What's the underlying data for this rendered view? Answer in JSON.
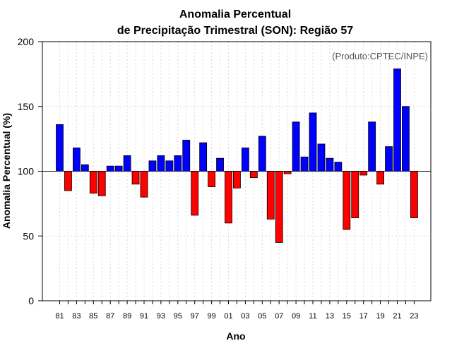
{
  "chart_data": {
    "type": "bar",
    "title_line1": "Anomalia Percentual",
    "title_line2": "de Precipitação Trimestral (SON): Região 57",
    "xlabel": "Ano",
    "ylabel": "Anomalia Percentual (%)",
    "annotation": "(Produto:CPTEC/INPE)",
    "baseline": 100,
    "ylim": [
      0,
      200
    ],
    "yticks": [
      0,
      50,
      100,
      150,
      200
    ],
    "grid": true,
    "colors": {
      "above": "#0000ff",
      "below": "#ff0000",
      "baseline": "#000000",
      "grid": "#d9d9d9"
    },
    "xtick_labels": [
      "81",
      "83",
      "85",
      "87",
      "89",
      "91",
      "93",
      "95",
      "97",
      "99",
      "01",
      "03",
      "05",
      "07",
      "09",
      "11",
      "13",
      "15",
      "17",
      "19",
      "21",
      "23"
    ],
    "categories": [
      "81",
      "82",
      "83",
      "84",
      "85",
      "86",
      "87",
      "88",
      "89",
      "90",
      "91",
      "92",
      "93",
      "94",
      "95",
      "96",
      "97",
      "98",
      "99",
      "00",
      "01",
      "02",
      "03",
      "04",
      "05",
      "06",
      "07",
      "08",
      "09",
      "10",
      "11",
      "12",
      "13",
      "14",
      "15",
      "16",
      "17",
      "18",
      "19",
      "20",
      "21",
      "22",
      "23"
    ],
    "values": [
      136,
      85,
      118,
      105,
      83,
      81,
      104,
      104,
      112,
      90,
      80,
      108,
      112,
      108,
      112,
      124,
      66,
      122,
      88,
      110,
      60,
      87,
      118,
      95,
      127,
      63,
      45,
      98,
      138,
      111,
      145,
      121,
      110,
      107,
      55,
      64,
      97,
      138,
      90,
      119,
      179,
      150,
      64
    ]
  }
}
